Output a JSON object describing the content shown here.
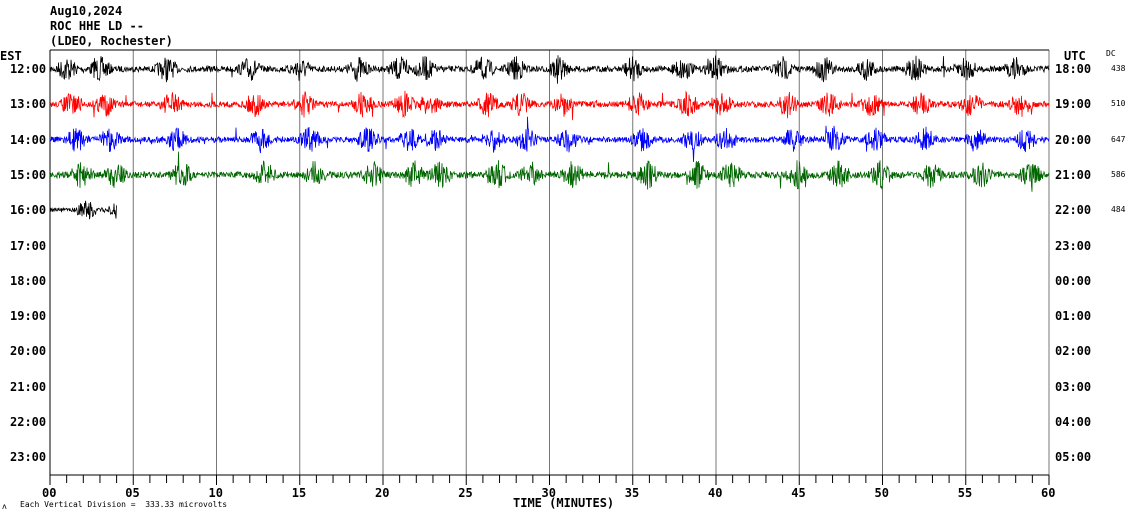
{
  "chart_data": {
    "type": "line",
    "title": [
      "Aug10,2024",
      "ROC HHE LD --",
      "(LDEO, Rochester)"
    ],
    "left_zone": "EST",
    "right_zone": "UTC",
    "dc_label": "DC",
    "xlabel": "TIME (MINUTES)",
    "xlim": [
      0,
      60
    ],
    "x_ticks": [
      "00",
      "05",
      "10",
      "15",
      "20",
      "25",
      "30",
      "35",
      "40",
      "45",
      "50",
      "55",
      "60"
    ],
    "left_hours": [
      "12:00",
      "13:00",
      "14:00",
      "15:00",
      "16:00",
      "17:00",
      "18:00",
      "19:00",
      "20:00",
      "21:00",
      "22:00",
      "23:00"
    ],
    "right_hours": [
      "18:00",
      "19:00",
      "20:00",
      "21:00",
      "22:00",
      "23:00",
      "00:00",
      "01:00",
      "02:00",
      "03:00",
      "04:00",
      "05:00"
    ],
    "dc_values": [
      "438",
      "510",
      "647",
      "586",
      "484"
    ],
    "series": [
      {
        "name": "12:00",
        "color": "#000000",
        "end_minute": 60,
        "amplitude": 1.0
      },
      {
        "name": "13:00",
        "color": "#ff0000",
        "end_minute": 60,
        "amplitude": 1.0
      },
      {
        "name": "14:00",
        "color": "#0000ff",
        "end_minute": 60,
        "amplitude": 1.0
      },
      {
        "name": "15:00",
        "color": "#006600",
        "end_minute": 60,
        "amplitude": 1.1
      },
      {
        "name": "16:00",
        "color": "#000000",
        "end_minute": 4,
        "amplitude": 0.8
      }
    ],
    "footer": "Each Vertical Division =  333.33 microvolts",
    "footer_mark": "ʌ"
  }
}
